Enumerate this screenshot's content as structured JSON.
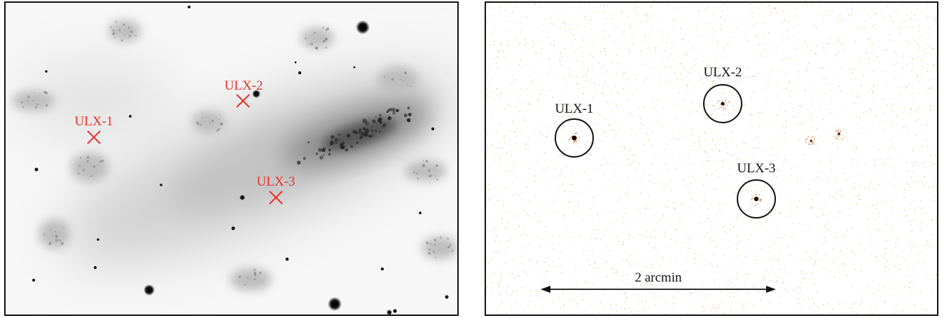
{
  "optical_panel": {
    "markers": [
      {
        "label": "ULX-1"
      },
      {
        "label": "ULX-2"
      },
      {
        "label": "ULX-3"
      }
    ],
    "marker_color": "#e8322b"
  },
  "xray_panel": {
    "sources": [
      {
        "label": "ULX-1"
      },
      {
        "label": "ULX-2"
      },
      {
        "label": "ULX-3"
      }
    ],
    "scale_bar_label": "2 arcmin",
    "noise_color": "#e8a050",
    "circle_color": "#111111"
  }
}
